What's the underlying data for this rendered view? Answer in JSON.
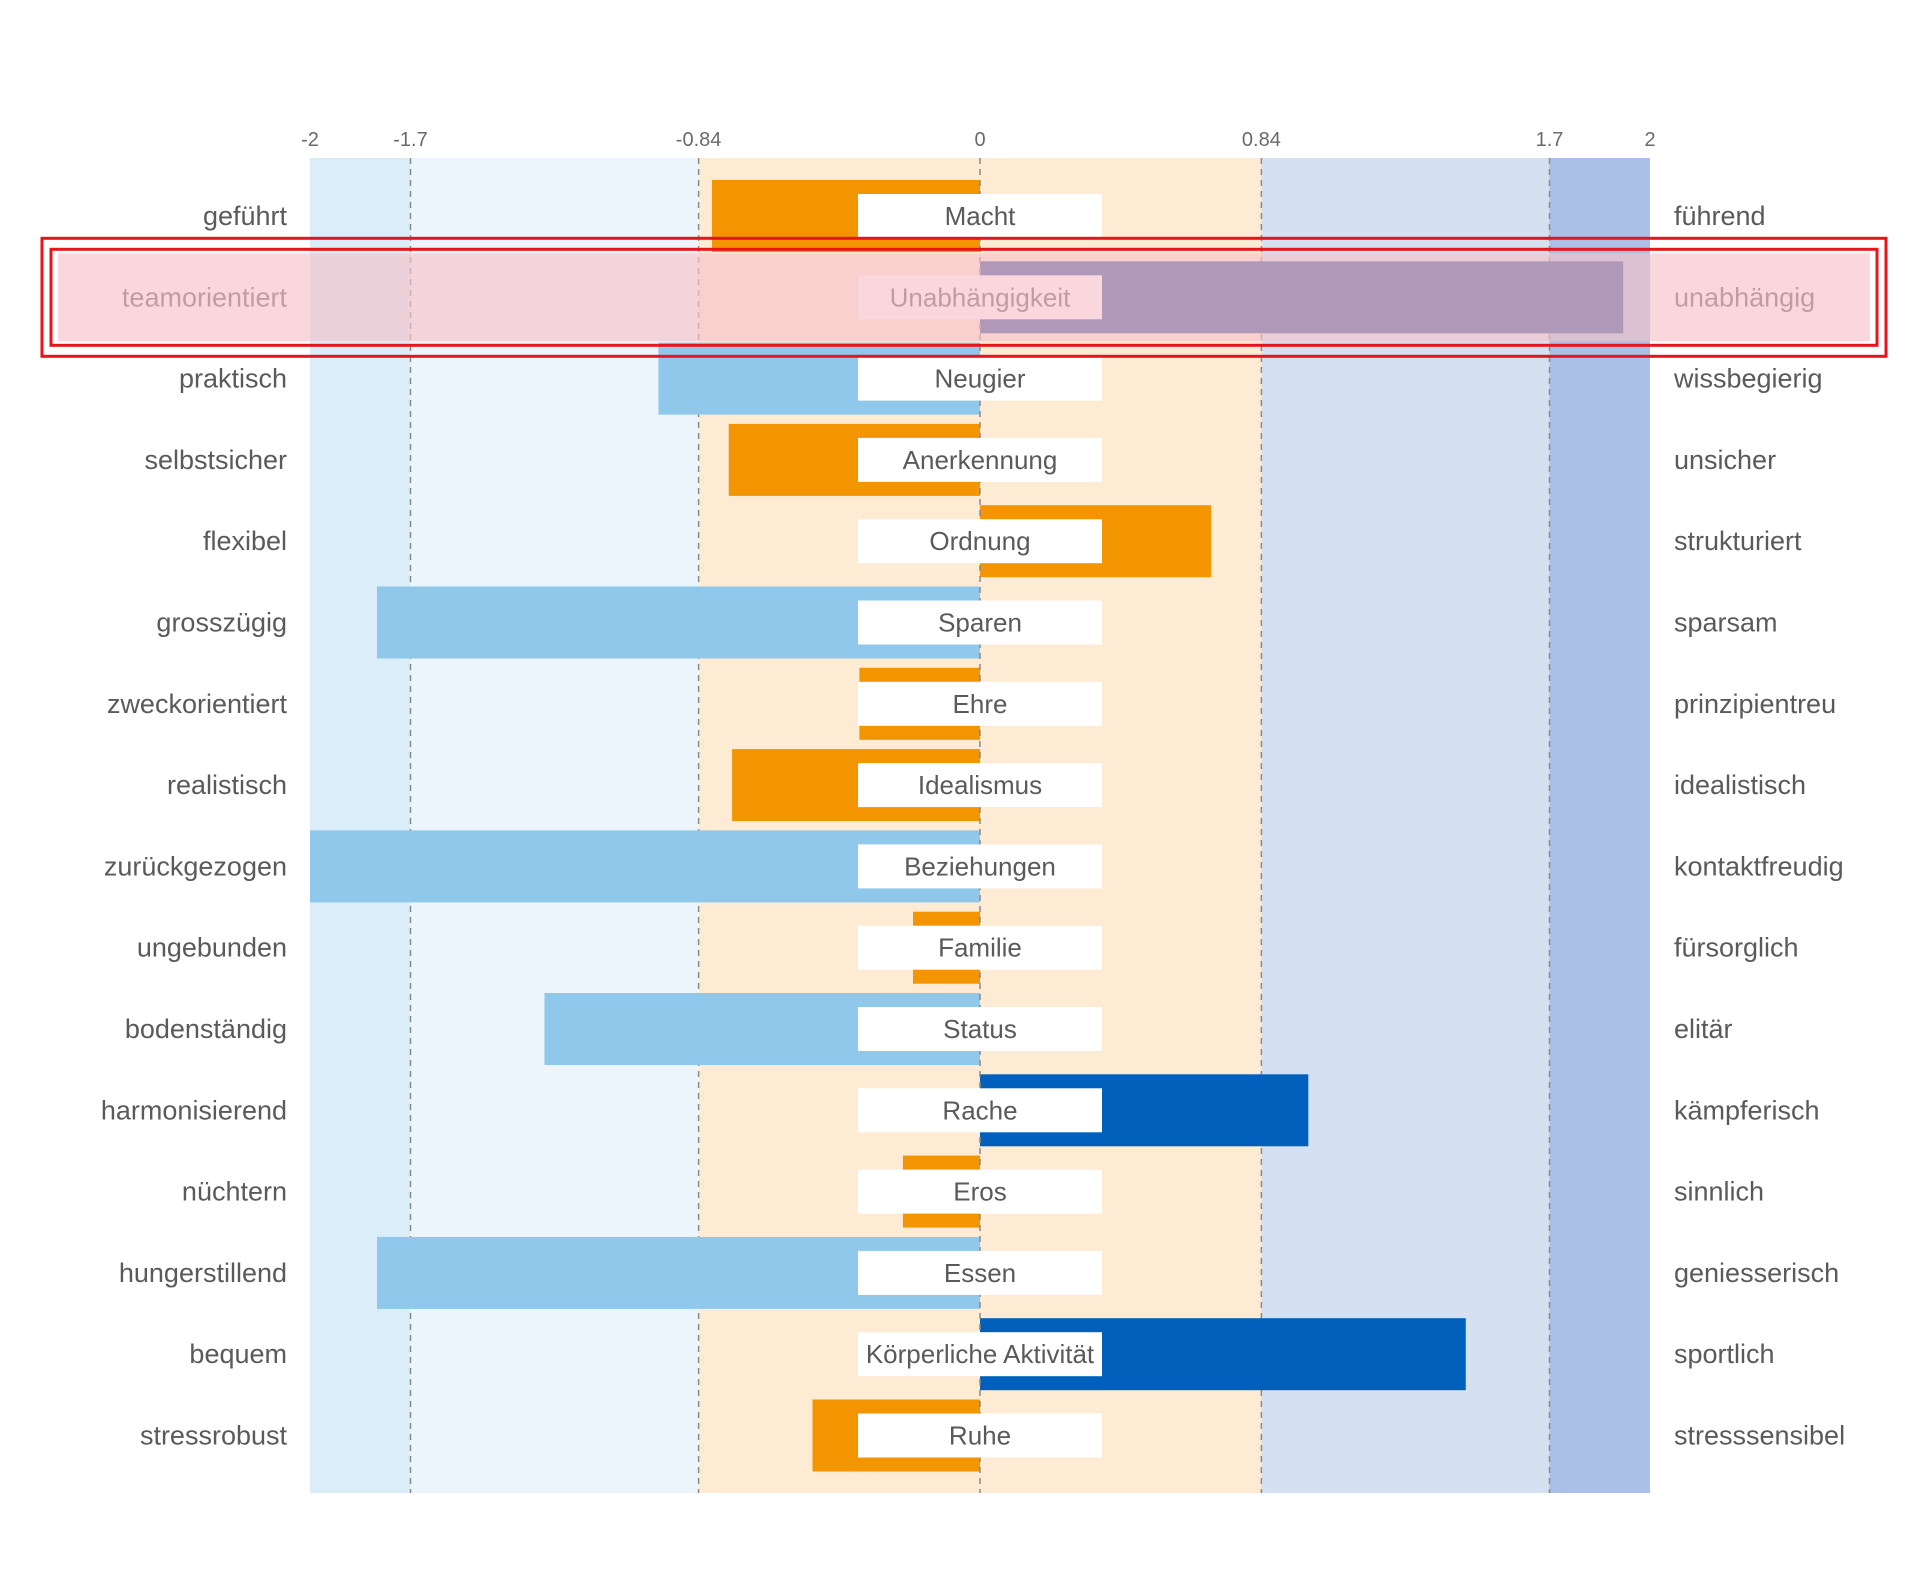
{
  "chart_data": {
    "type": "bar",
    "orientation": "horizontal-diverging",
    "xlim": [
      -2,
      2
    ],
    "ticks": [
      -2,
      -1.7,
      -0.84,
      0,
      0.84,
      1.7,
      2
    ],
    "tick_labels": [
      "-2",
      "-1.7",
      "-0.84",
      "0",
      "0.84",
      "1.7",
      "2"
    ],
    "bands": [
      {
        "from": -2,
        "to": -1.7,
        "color": "#daedf9"
      },
      {
        "from": -1.7,
        "to": -0.84,
        "color": "#ecf5fc"
      },
      {
        "from": -0.84,
        "to": 0.84,
        "color": "#fdebd4"
      },
      {
        "from": 0.84,
        "to": 1.7,
        "color": "#d5e1f1"
      },
      {
        "from": 1.7,
        "to": 2,
        "color": "#aac0e6"
      }
    ],
    "highlighted_row": 1,
    "rows": [
      {
        "left": "geführt",
        "center": "Macht",
        "right": "führend",
        "value": -0.8,
        "color": "#f29500"
      },
      {
        "left": "teamorientiert",
        "center": "Unabhängigkeit",
        "right": "unabhängig",
        "value": 1.92,
        "color": "#2b4c9b"
      },
      {
        "left": "praktisch",
        "center": "Neugier",
        "right": "wissbegierig",
        "value": -0.96,
        "color": "#8fc8ea"
      },
      {
        "left": "selbstsicher",
        "center": "Anerkennung",
        "right": "unsicher",
        "value": -0.75,
        "color": "#f29500"
      },
      {
        "left": "flexibel",
        "center": "Ordnung",
        "right": "strukturiert",
        "value": 0.69,
        "color": "#f29500"
      },
      {
        "left": "grosszügig",
        "center": "Sparen",
        "right": "sparsam",
        "value": -1.8,
        "color": "#8fc8ea"
      },
      {
        "left": "zweckorientiert",
        "center": "Ehre",
        "right": "prinzipientreu",
        "value": -0.36,
        "color": "#f29500"
      },
      {
        "left": "realistisch",
        "center": "Idealismus",
        "right": "idealistisch",
        "value": -0.74,
        "color": "#f29500"
      },
      {
        "left": "zurückgezogen",
        "center": "Beziehungen",
        "right": "kontaktfreudig",
        "value": -2.0,
        "color": "#8fc8ea"
      },
      {
        "left": "ungebunden",
        "center": "Familie",
        "right": "fürsorglich",
        "value": -0.2,
        "color": "#f29500"
      },
      {
        "left": "bodenständig",
        "center": "Status",
        "right": "elitär",
        "value": -1.3,
        "color": "#8fc8ea"
      },
      {
        "left": "harmonisierend",
        "center": "Rache",
        "right": "kämpferisch",
        "value": 0.98,
        "color": "#0060bc"
      },
      {
        "left": "nüchtern",
        "center": "Eros",
        "right": "sinnlich",
        "value": -0.23,
        "color": "#f29500"
      },
      {
        "left": "hungerstillend",
        "center": "Essen",
        "right": "geniesserisch",
        "value": -1.8,
        "color": "#8fc8ea"
      },
      {
        "left": "bequem",
        "center": "Körperliche Aktivität",
        "right": "sportlich",
        "value": 1.45,
        "color": "#0060bc"
      },
      {
        "left": "stressrobust",
        "center": "Ruhe",
        "right": "stresssensibel",
        "value": -0.5,
        "color": "#f29500"
      }
    ],
    "colors": {
      "highlight_fill": "#f7c2c9",
      "highlight_stroke": "#e8141c",
      "grid": "#8a8a8a",
      "label_text": "#5a5a5a",
      "tick_text": "#6a6a6a",
      "center_box": "#ffffff"
    }
  }
}
